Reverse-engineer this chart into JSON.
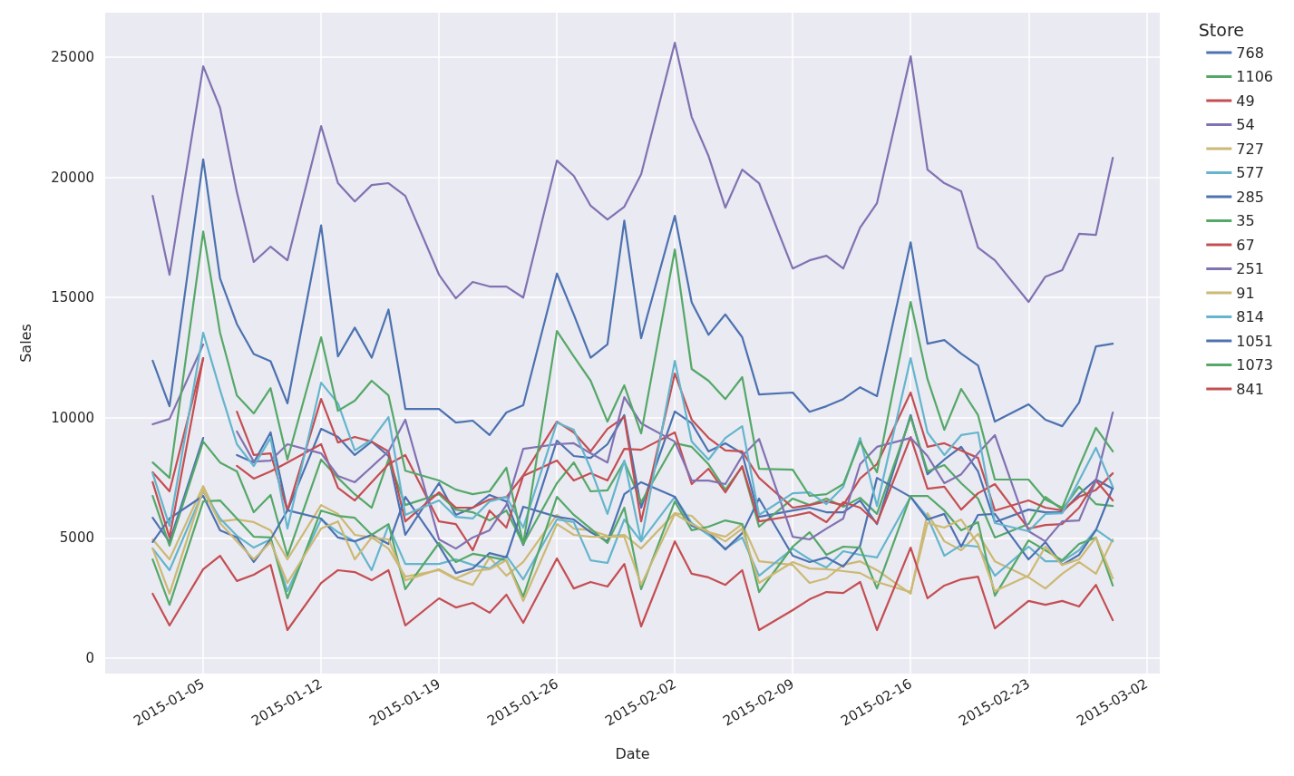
{
  "chart_data": {
    "type": "line",
    "xlabel": "Date",
    "ylabel": "Sales",
    "legend_title": "Store",
    "legend": "right",
    "grid": true,
    "xlim": [
      "2014-12-30T04:20",
      "2015-03-02T19:00"
    ],
    "xticks": [
      "2015-01-05",
      "2015-01-12",
      "2015-01-19",
      "2015-01-26",
      "2015-02-02",
      "2015-02-09",
      "2015-02-16",
      "2015-02-23",
      "2015-03-02"
    ],
    "ylim": [
      -640,
      26850
    ],
    "yticks": [
      0,
      5000,
      10000,
      15000,
      20000,
      25000
    ],
    "x": [
      "2015-01-02",
      "2015-01-03",
      "2015-01-05",
      "2015-01-06",
      "2015-01-07",
      "2015-01-08",
      "2015-01-09",
      "2015-01-10",
      "2015-01-12",
      "2015-01-13",
      "2015-01-14",
      "2015-01-15",
      "2015-01-16",
      "2015-01-17",
      "2015-01-19",
      "2015-01-20",
      "2015-01-21",
      "2015-01-22",
      "2015-01-23",
      "2015-01-24",
      "2015-01-26",
      "2015-01-27",
      "2015-01-28",
      "2015-01-29",
      "2015-01-30",
      "2015-01-31",
      "2015-02-02",
      "2015-02-03",
      "2015-02-04",
      "2015-02-05",
      "2015-02-06",
      "2015-02-07",
      "2015-02-09",
      "2015-02-10",
      "2015-02-11",
      "2015-02-12",
      "2015-02-13",
      "2015-02-14",
      "2015-02-16",
      "2015-02-17",
      "2015-02-18",
      "2015-02-19",
      "2015-02-20",
      "2015-02-21",
      "2015-02-23",
      "2015-02-24",
      "2015-02-25",
      "2015-02-26",
      "2015-02-27",
      "2015-02-28"
    ],
    "series": [
      {
        "name": "768",
        "color": "#4c72b0",
        "values": [
          5840,
          4830,
          9160,
          null,
          8450,
          8140,
          9390,
          6140,
          9540,
          9200,
          8450,
          9010,
          8410,
          5130,
          7280,
          5960,
          6260,
          6790,
          6520,
          4710,
          9050,
          8410,
          8330,
          8900,
          10110,
          6260,
          10260,
          9770,
          8600,
          8940,
          8520,
          5880,
          6140,
          6260,
          6070,
          6070,
          6560,
          5580,
          10110,
          7650,
          8260,
          8790,
          7770,
          5660,
          6180,
          6070,
          6070,
          6820,
          7430,
          7050
        ]
      },
      {
        "name": "1106",
        "color": "#55a868",
        "values": [
          6750,
          4680,
          9010,
          8140,
          7770,
          6070,
          6790,
          4260,
          8260,
          7500,
          6820,
          6260,
          8260,
          6370,
          6820,
          6180,
          6070,
          5730,
          6140,
          4750,
          7280,
          8140,
          6940,
          6980,
          8180,
          6490,
          8940,
          8790,
          8070,
          7010,
          7960,
          5470,
          6640,
          6370,
          6640,
          6300,
          6670,
          6000,
          10030,
          7770,
          8030,
          7280,
          6640,
          5020,
          5580,
          6710,
          6180,
          7130,
          6410,
          6330
        ]
      },
      {
        "name": "49",
        "color": "#c44e52",
        "values": [
          7730,
          6940,
          12480,
          null,
          10250,
          8450,
          8520,
          6140,
          10780,
          8970,
          9200,
          9010,
          8600,
          5690,
          6900,
          6260,
          6260,
          6600,
          6700,
          7600,
          9840,
          9390,
          8600,
          9540,
          10030,
          5690,
          11840,
          9920,
          9160,
          8640,
          8600,
          7500,
          6260,
          6370,
          6520,
          6370,
          7470,
          8070,
          11050,
          8790,
          8940,
          8640,
          8330,
          6140,
          6560,
          6260,
          6140,
          6710,
          7000,
          7690
        ]
      },
      {
        "name": "54",
        "color": "#8172b2",
        "values": [
          19230,
          15950,
          24620,
          22890,
          19380,
          16480,
          17120,
          16550,
          22130,
          19760,
          19000,
          19680,
          19760,
          19230,
          15950,
          14970,
          15650,
          15460,
          15460,
          15000,
          20700,
          20060,
          18820,
          18250,
          18780,
          20130,
          25600,
          22510,
          20890,
          18740,
          20320,
          19760,
          16210,
          16550,
          16740,
          16210,
          17910,
          18930,
          25040,
          20320,
          19760,
          19420,
          17080,
          16550,
          14820,
          15870,
          16140,
          17650,
          17610,
          20810
        ]
      },
      {
        "name": "727",
        "color": "#ccb974",
        "values": [
          4940,
          4110,
          7160,
          5690,
          5770,
          5660,
          5320,
          4110,
          6370,
          6000,
          5130,
          5020,
          4560,
          3390,
          3660,
          3280,
          3050,
          4190,
          3430,
          4000,
          5960,
          5390,
          5320,
          5090,
          5130,
          4560,
          6030,
          5920,
          5240,
          5050,
          5580,
          4030,
          3880,
          3130,
          3320,
          3880,
          4030,
          3660,
          2680,
          6030,
          4860,
          4490,
          5170,
          4030,
          3360,
          2900,
          3510,
          4000,
          3510,
          4940
        ]
      },
      {
        "name": "577",
        "color": "#64b5cd",
        "values": [
          4560,
          3660,
          6940,
          5810,
          5090,
          4600,
          4940,
          2790,
          5770,
          5240,
          4860,
          3660,
          5510,
          3920,
          3920,
          4110,
          3880,
          3730,
          4260,
          3280,
          5770,
          5660,
          4070,
          3960,
          5770,
          4860,
          6710,
          5620,
          5130,
          4560,
          5020,
          3430,
          4560,
          4110,
          3770,
          4450,
          4300,
          4190,
          6710,
          5880,
          4260,
          4710,
          4640,
          3430,
          4640,
          4030,
          4030,
          4490,
          5350,
          4860
        ]
      },
      {
        "name": "285",
        "color": "#4c72b0",
        "values": [
          4830,
          5810,
          6750,
          5320,
          5020,
          4000,
          4940,
          6150,
          5810,
          5020,
          4860,
          5130,
          4750,
          6710,
          4680,
          3540,
          3730,
          4370,
          4190,
          6300,
          5880,
          5770,
          5240,
          4860,
          6820,
          7320,
          6710,
          5510,
          5240,
          4520,
          5200,
          6640,
          4260,
          4000,
          4190,
          3810,
          4680,
          7500,
          6710,
          5770,
          6000,
          4640,
          5960,
          6000,
          4110,
          4830,
          3880,
          4300,
          5320,
          7090
        ]
      },
      {
        "name": "35",
        "color": "#55a868",
        "values": [
          4110,
          2220,
          6520,
          6560,
          5810,
          5050,
          5020,
          2490,
          6140,
          5920,
          5840,
          5130,
          5580,
          2870,
          4790,
          4000,
          4340,
          4220,
          4070,
          2560,
          6710,
          5960,
          5390,
          4790,
          6260,
          2870,
          6520,
          5320,
          5470,
          5730,
          5580,
          2750,
          4640,
          5240,
          4300,
          4640,
          4600,
          2900,
          6750,
          6750,
          6140,
          5320,
          5660,
          2600,
          4900,
          4490,
          4070,
          4750,
          5020,
          3020
        ]
      },
      {
        "name": "67",
        "color": "#c44e52",
        "values": [
          7320,
          5020,
          12480,
          null,
          8000,
          7470,
          7770,
          8140,
          8900,
          7090,
          6560,
          7320,
          8070,
          8450,
          5690,
          5580,
          4490,
          6140,
          5430,
          7580,
          8220,
          7390,
          7690,
          7390,
          8710,
          8670,
          9390,
          7240,
          7880,
          6900,
          7990,
          5690,
          5920,
          6070,
          5660,
          6490,
          6260,
          5620,
          9200,
          7050,
          7130,
          6180,
          6860,
          7240,
          5390,
          5540,
          5580,
          6260,
          7390,
          6560
        ]
      },
      {
        "name": "251",
        "color": "#8172b2",
        "values": [
          9730,
          9950,
          13050,
          null,
          9430,
          8180,
          8220,
          8900,
          8520,
          7580,
          7320,
          7960,
          8600,
          9920,
          4940,
          4560,
          5020,
          5320,
          6370,
          8710,
          8900,
          8940,
          8520,
          8140,
          10860,
          9770,
          9010,
          7390,
          7390,
          7240,
          8410,
          9120,
          5050,
          4940,
          5390,
          5810,
          8070,
          8790,
          9160,
          8410,
          7280,
          7650,
          8520,
          9280,
          5280,
          4860,
          5690,
          5730,
          7390,
          10220
        ]
      },
      {
        "name": "91",
        "color": "#ccb974",
        "values": [
          4560,
          2680,
          7010,
          5620,
          4860,
          4110,
          4830,
          3130,
          5390,
          5690,
          4110,
          5020,
          4940,
          3240,
          3700,
          3320,
          3620,
          3700,
          4070,
          2380,
          5580,
          5130,
          5050,
          5050,
          5050,
          3050,
          6000,
          5580,
          5240,
          4860,
          5390,
          3130,
          4000,
          3730,
          3700,
          3620,
          3540,
          3170,
          2750,
          5620,
          5430,
          5770,
          4750,
          2790,
          3430,
          4640,
          3880,
          4110,
          5020,
          3320
        ]
      },
      {
        "name": "814",
        "color": "#64b5cd",
        "values": [
          7690,
          5500,
          13540,
          11160,
          8900,
          7990,
          9160,
          5390,
          11460,
          10600,
          8640,
          9090,
          10030,
          5960,
          6560,
          5880,
          5810,
          6520,
          6710,
          5430,
          9800,
          9500,
          7880,
          6000,
          8220,
          4860,
          12370,
          9010,
          8260,
          9160,
          9650,
          5960,
          6860,
          6900,
          6410,
          7130,
          9160,
          6330,
          12480,
          9390,
          8450,
          9280,
          9390,
          5620,
          5280,
          6000,
          6030,
          7390,
          8750,
          7130
        ]
      },
      {
        "name": "1051",
        "color": "#4c72b0",
        "values": [
          12370,
          10480,
          20750,
          15800,
          13900,
          12650,
          12350,
          10600,
          18000,
          12550,
          13750,
          12500,
          14500,
          10370,
          10370,
          9800,
          9880,
          9280,
          10220,
          10520,
          16000,
          14300,
          12500,
          13050,
          18200,
          13310,
          18400,
          14800,
          13450,
          14300,
          13350,
          10970,
          11050,
          10250,
          10480,
          10780,
          11270,
          10900,
          17300,
          13080,
          13230,
          12670,
          12180,
          9840,
          10560,
          9920,
          9650,
          10630,
          12970,
          13080
        ]
      },
      {
        "name": "1073",
        "color": "#55a868",
        "values": [
          8140,
          7500,
          17750,
          13540,
          10930,
          10180,
          11230,
          8260,
          13350,
          10290,
          10710,
          11540,
          10930,
          7800,
          7390,
          7010,
          6820,
          6940,
          7920,
          4750,
          13610,
          12550,
          11540,
          9840,
          11350,
          9350,
          17000,
          12030,
          11540,
          10780,
          11690,
          7880,
          7840,
          6750,
          6820,
          7240,
          9010,
          7730,
          14820,
          11610,
          9500,
          11200,
          10110,
          7430,
          7430,
          6600,
          6260,
          7960,
          9580,
          8600
        ]
      },
      {
        "name": "841",
        "color": "#c44e52",
        "values": [
          2680,
          1360,
          3700,
          4260,
          3210,
          3470,
          3880,
          1170,
          3130,
          3660,
          3580,
          3240,
          3660,
          1360,
          2490,
          2110,
          2300,
          1890,
          2640,
          1470,
          4150,
          2900,
          3170,
          2980,
          3920,
          1320,
          4860,
          3510,
          3360,
          3050,
          3660,
          1170,
          2000,
          2450,
          2750,
          2710,
          3170,
          1170,
          4600,
          2490,
          3020,
          3280,
          3390,
          1240,
          2380,
          2220,
          2380,
          2150,
          3050,
          1580
        ]
      }
    ]
  }
}
